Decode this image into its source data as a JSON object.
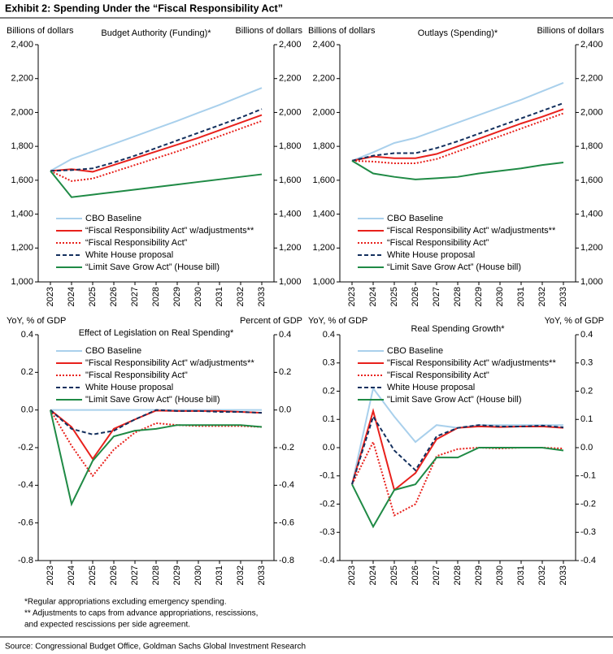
{
  "header": {
    "title": "Exhibit 2: Spending Under the “Fiscal Responsibility Act”"
  },
  "footnotes": [
    "*Regular appropriations excluding emergency spending.",
    "** Adjustments to caps from advance appropriations, rescissions,",
    "and expected rescissions per side agreement."
  ],
  "source": "Source: Congressional Budget Office, Goldman Sachs Global Investment Research",
  "chart_data": [
    {
      "type": "line",
      "title": "Budget Authority (Funding)*",
      "ylabel": "Billions of dollars",
      "y2label": "Billions of dollars",
      "categories": [
        "2023",
        "2024",
        "2025",
        "2026",
        "2027",
        "2028",
        "2029",
        "2030",
        "2031",
        "2032",
        "2033"
      ],
      "ylim": [
        1000,
        2400
      ],
      "yticks": [
        {
          "value": 1000,
          "label": "1,000"
        },
        {
          "value": 1200,
          "label": "1,200"
        },
        {
          "value": 1400,
          "label": "1,400"
        },
        {
          "value": 1600,
          "label": "1,600"
        },
        {
          "value": 1800,
          "label": "1,800"
        },
        {
          "value": 2000,
          "label": "2,000"
        },
        {
          "value": 2200,
          "label": "2,200"
        },
        {
          "value": 2400,
          "label": "2,400"
        }
      ],
      "legend": "lower left",
      "series": [
        {
          "name": "CBO Baseline",
          "color": "#a9d0ec",
          "dash": "solid",
          "values": [
            1655,
            1725,
            1770,
            1815,
            1860,
            1905,
            1950,
            1998,
            2045,
            2095,
            2145
          ]
        },
        {
          "name": "“Fiscal Responsibility Act” w/adjustments**",
          "color": "#e8211c",
          "dash": "solid",
          "values": [
            1655,
            1665,
            1650,
            1690,
            1730,
            1770,
            1810,
            1850,
            1895,
            1940,
            1985
          ]
        },
        {
          "name": "“Fiscal Responsibility Act”",
          "color": "#e8211c",
          "dash": "dotted",
          "values": [
            1655,
            1595,
            1610,
            1650,
            1690,
            1730,
            1770,
            1815,
            1860,
            1905,
            1950
          ]
        },
        {
          "name": "White House proposal",
          "color": "#14305e",
          "dash": "dashed",
          "values": [
            1655,
            1660,
            1670,
            1705,
            1745,
            1790,
            1835,
            1880,
            1925,
            1970,
            2020
          ]
        },
        {
          "name": "“Limit Save Grow Act” (House bill)",
          "color": "#1f8a45",
          "dash": "solid",
          "values": [
            1655,
            1500,
            1515,
            1530,
            1545,
            1560,
            1575,
            1590,
            1605,
            1620,
            1635
          ]
        }
      ]
    },
    {
      "type": "line",
      "title": "Outlays (Spending)*",
      "ylabel": "Billions of dollars",
      "y2label": "Billions of dollars",
      "categories": [
        "2023",
        "2024",
        "2025",
        "2026",
        "2027",
        "2028",
        "2029",
        "2030",
        "2031",
        "2032",
        "2033"
      ],
      "ylim": [
        1000,
        2400
      ],
      "yticks": [
        {
          "value": 1000,
          "label": "1,000"
        },
        {
          "value": 1200,
          "label": "1,200"
        },
        {
          "value": 1400,
          "label": "1,400"
        },
        {
          "value": 1600,
          "label": "1,600"
        },
        {
          "value": 1800,
          "label": "1,800"
        },
        {
          "value": 2000,
          "label": "2,000"
        },
        {
          "value": 2200,
          "label": "2,200"
        },
        {
          "value": 2400,
          "label": "2,400"
        }
      ],
      "legend": "lower left",
      "series": [
        {
          "name": "CBO Baseline",
          "color": "#a9d0ec",
          "dash": "solid",
          "values": [
            1715,
            1765,
            1820,
            1850,
            1895,
            1940,
            1985,
            2030,
            2075,
            2125,
            2175
          ]
        },
        {
          "name": "“Fiscal Responsibility Act” w/adjustments**",
          "color": "#e8211c",
          "dash": "solid",
          "values": [
            1715,
            1740,
            1730,
            1730,
            1755,
            1800,
            1845,
            1890,
            1935,
            1975,
            2020
          ]
        },
        {
          "name": "“Fiscal Responsibility Act”",
          "color": "#e8211c",
          "dash": "dotted",
          "values": [
            1715,
            1710,
            1700,
            1700,
            1725,
            1770,
            1815,
            1860,
            1905,
            1950,
            1995
          ]
        },
        {
          "name": "White House proposal",
          "color": "#14305e",
          "dash": "dashed",
          "values": [
            1715,
            1745,
            1760,
            1760,
            1790,
            1830,
            1875,
            1920,
            1965,
            2010,
            2055
          ]
        },
        {
          "name": "“Limit Save Grow Act” (House bill)",
          "color": "#1f8a45",
          "dash": "solid",
          "values": [
            1715,
            1640,
            1620,
            1605,
            1612,
            1620,
            1640,
            1655,
            1670,
            1690,
            1705
          ]
        }
      ]
    },
    {
      "type": "line",
      "title": "Effect of Legislation on Real Spending*",
      "ylabel": "YoY, % of GDP",
      "y2label": "Percent of GDP",
      "categories": [
        "2023",
        "2024",
        "2025",
        "2026",
        "2027",
        "2028",
        "2029",
        "2030",
        "2031",
        "2032",
        "2033"
      ],
      "ylim": [
        -0.8,
        0.4
      ],
      "yticks": [
        -0.8,
        -0.6,
        -0.4,
        -0.2,
        {
          "value": 0,
          "label": "0.0"
        },
        0.2,
        0.4
      ],
      "legend": "upper left",
      "series": [
        {
          "name": "CBO Baseline",
          "color": "#a9d0ec",
          "dash": "solid",
          "values": [
            0,
            0,
            0,
            0,
            0,
            0,
            0,
            0,
            0,
            0,
            0
          ]
        },
        {
          "name": "\"Fiscal Responsibility Act\" w/adjustments**",
          "color": "#e8211c",
          "dash": "solid",
          "values": [
            0,
            -0.09,
            -0.26,
            -0.1,
            -0.05,
            -0.003,
            -0.005,
            -0.005,
            -0.005,
            -0.01,
            -0.015
          ]
        },
        {
          "name": "\"Fiscal Responsibility Act\"",
          "color": "#e8211c",
          "dash": "dotted",
          "values": [
            0,
            -0.19,
            -0.35,
            -0.21,
            -0.12,
            -0.07,
            -0.08,
            -0.085,
            -0.085,
            -0.085,
            -0.09
          ]
        },
        {
          "name": "White House proposal",
          "color": "#14305e",
          "dash": "dashed",
          "values": [
            0,
            -0.1,
            -0.13,
            -0.11,
            -0.05,
            0,
            -0.005,
            -0.005,
            -0.01,
            -0.01,
            -0.015
          ]
        },
        {
          "name": "\"Limit Save Grow Act\" (House bill)",
          "color": "#1f8a45",
          "dash": "solid",
          "values": [
            0,
            -0.5,
            -0.27,
            -0.14,
            -0.11,
            -0.1,
            -0.08,
            -0.08,
            -0.08,
            -0.08,
            -0.09
          ]
        }
      ]
    },
    {
      "type": "line",
      "title": "Real Spending Growth*",
      "ylabel": "YoY, % of GDP",
      "y2label": "YoY, % of GDP",
      "categories": [
        "2023",
        "2024",
        "2025",
        "2026",
        "2027",
        "2028",
        "2029",
        "2030",
        "2031",
        "2032",
        "2033"
      ],
      "ylim": [
        -0.4,
        0.4
      ],
      "yticks": [
        -0.4,
        -0.3,
        -0.2,
        -0.1,
        {
          "value": 0,
          "label": "0.0"
        },
        0.1,
        0.2,
        0.3,
        0.4
      ],
      "legend": "upper left",
      "series": [
        {
          "name": "CBO Baseline",
          "color": "#a9d0ec",
          "dash": "solid",
          "values": [
            -0.13,
            0.21,
            0.11,
            0.02,
            0.08,
            0.07,
            0.08,
            0.08,
            0.08,
            0.08,
            0.08
          ]
        },
        {
          "name": "\"Fiscal Responsibility Act\" w/adjustments**",
          "color": "#e8211c",
          "dash": "solid",
          "values": [
            -0.13,
            0.13,
            -0.15,
            -0.09,
            0.03,
            0.07,
            0.075,
            0.073,
            0.075,
            0.075,
            0.07
          ]
        },
        {
          "name": "\"Fiscal Responsibility Act\"",
          "color": "#e8211c",
          "dash": "dotted",
          "values": [
            -0.13,
            0.02,
            -0.24,
            -0.2,
            -0.03,
            -0.005,
            0,
            -0.003,
            0,
            0,
            -0.003
          ]
        },
        {
          "name": "White House proposal",
          "color": "#14305e",
          "dash": "dashed",
          "values": [
            -0.13,
            0.11,
            -0.01,
            -0.08,
            0.04,
            0.07,
            0.08,
            0.075,
            0.075,
            0.078,
            0.072
          ]
        },
        {
          "name": "\"Limit Save Grow Act\" (House bill)",
          "color": "#1f8a45",
          "dash": "solid",
          "values": [
            -0.13,
            -0.28,
            -0.15,
            -0.13,
            -0.035,
            -0.035,
            0,
            0,
            0,
            0,
            -0.01
          ]
        }
      ]
    }
  ]
}
